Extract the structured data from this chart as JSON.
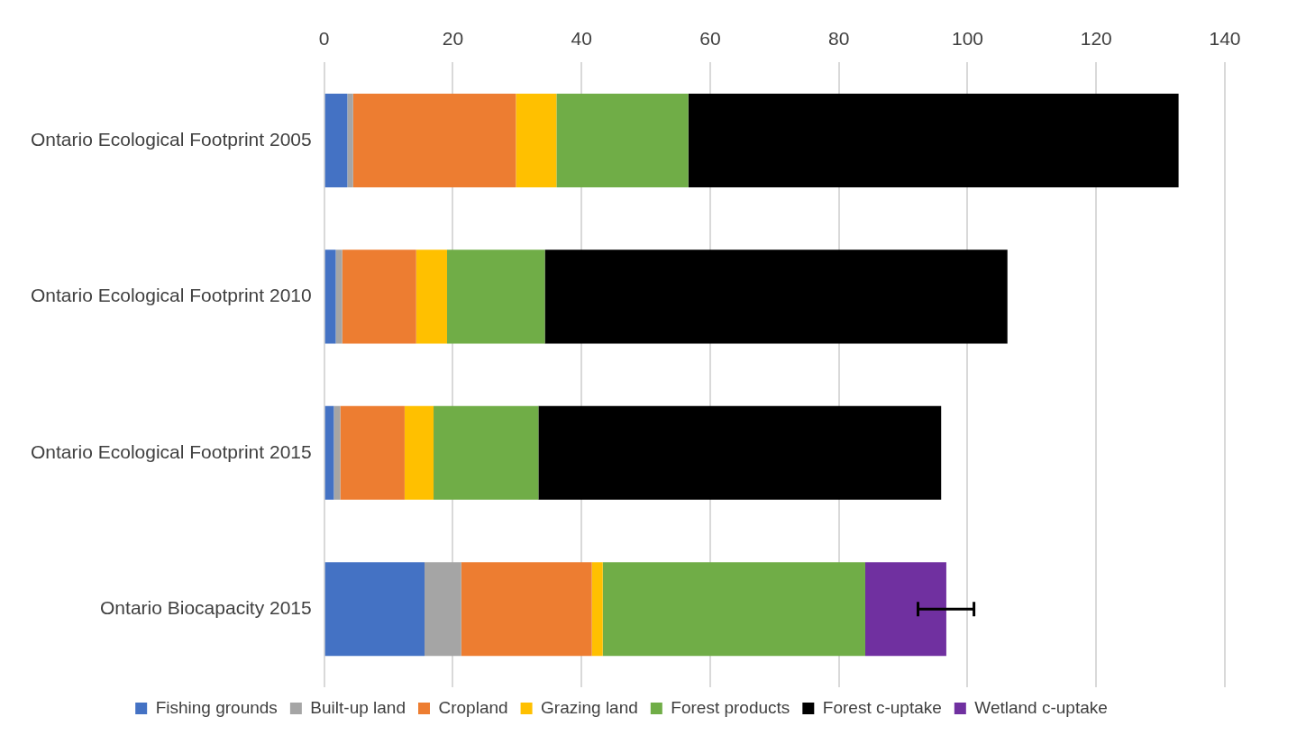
{
  "chart_data": {
    "type": "bar",
    "orientation": "horizontal",
    "stacked": true,
    "categories": [
      "Ontario Ecological Footprint 2005",
      "Ontario Ecological Footprint 2010",
      "Ontario Ecological Footprint 2015",
      "Ontario Biocapacity 2015"
    ],
    "series": [
      {
        "name": "Fishing grounds",
        "color": "#4472c4",
        "values": [
          3.6,
          1.8,
          1.5,
          15.6
        ]
      },
      {
        "name": "Built-up land",
        "color": "#a5a5a5",
        "values": [
          0.9,
          1.0,
          1.0,
          5.7
        ]
      },
      {
        "name": "Cropland",
        "color": "#ed7d31",
        "values": [
          25.3,
          11.5,
          10.0,
          20.3
        ]
      },
      {
        "name": "Grazing land",
        "color": "#ffc000",
        "values": [
          6.3,
          4.8,
          4.5,
          1.7
        ]
      },
      {
        "name": "Forest products",
        "color": "#70ad47",
        "values": [
          20.5,
          15.2,
          16.3,
          40.8
        ]
      },
      {
        "name": "Forest c-uptake",
        "color": "#000000",
        "values": [
          76.2,
          71.9,
          62.6,
          null
        ]
      },
      {
        "name": "Wetland c-uptake",
        "color": "#7030a0",
        "values": [
          null,
          null,
          null,
          12.6
        ],
        "errors": [
          null,
          null,
          null,
          [
            92.3,
            101.0
          ]
        ]
      }
    ],
    "xlim": [
      0,
      140
    ],
    "xticks": [
      0,
      20,
      40,
      60,
      80,
      100,
      120,
      140
    ],
    "grid": "x",
    "legend": "bottom"
  }
}
